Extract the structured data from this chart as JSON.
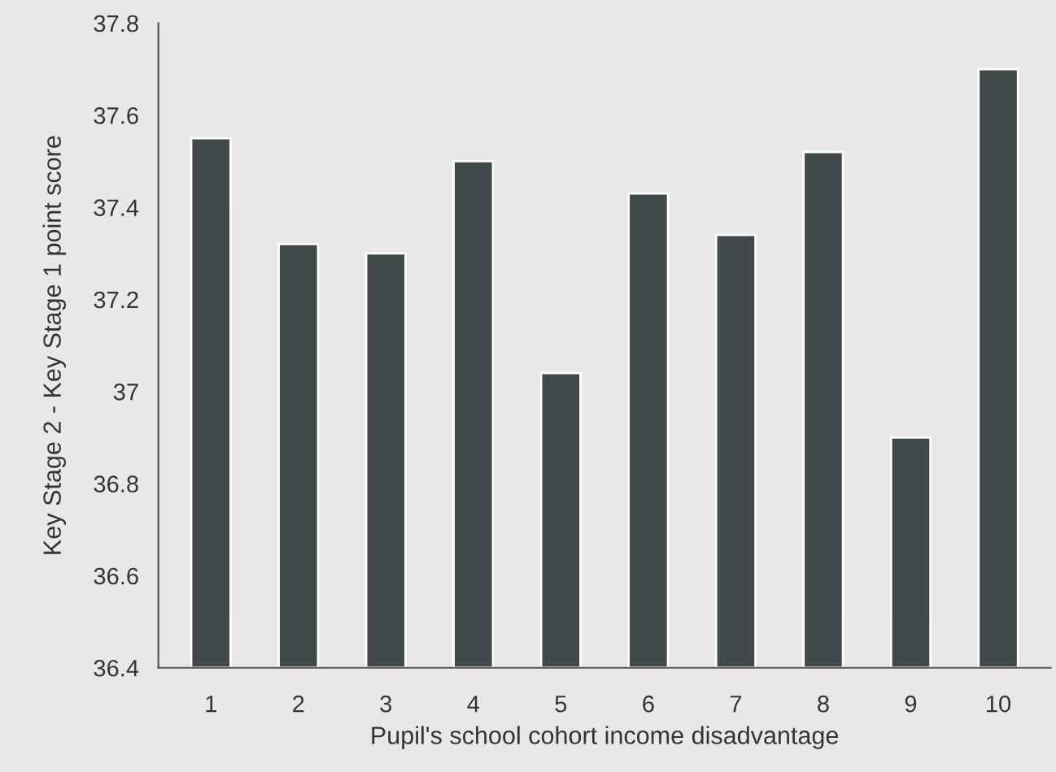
{
  "chart_data": {
    "type": "bar",
    "xlabel": "Pupil's school cohort income disadvantage",
    "ylabel": "Key Stage 2 - Key Stage 1 point score",
    "categories": [
      "1",
      "2",
      "3",
      "4",
      "5",
      "6",
      "7",
      "8",
      "9",
      "10"
    ],
    "values": [
      37.55,
      37.32,
      37.3,
      37.5,
      37.04,
      37.43,
      37.34,
      37.52,
      36.9,
      37.7
    ],
    "color": "#414849",
    "ylim": [
      36.4,
      37.8
    ],
    "yticks": [
      36.4,
      36.6,
      36.8,
      37,
      37.2,
      37.4,
      37.6,
      37.8
    ],
    "grid": false
  }
}
